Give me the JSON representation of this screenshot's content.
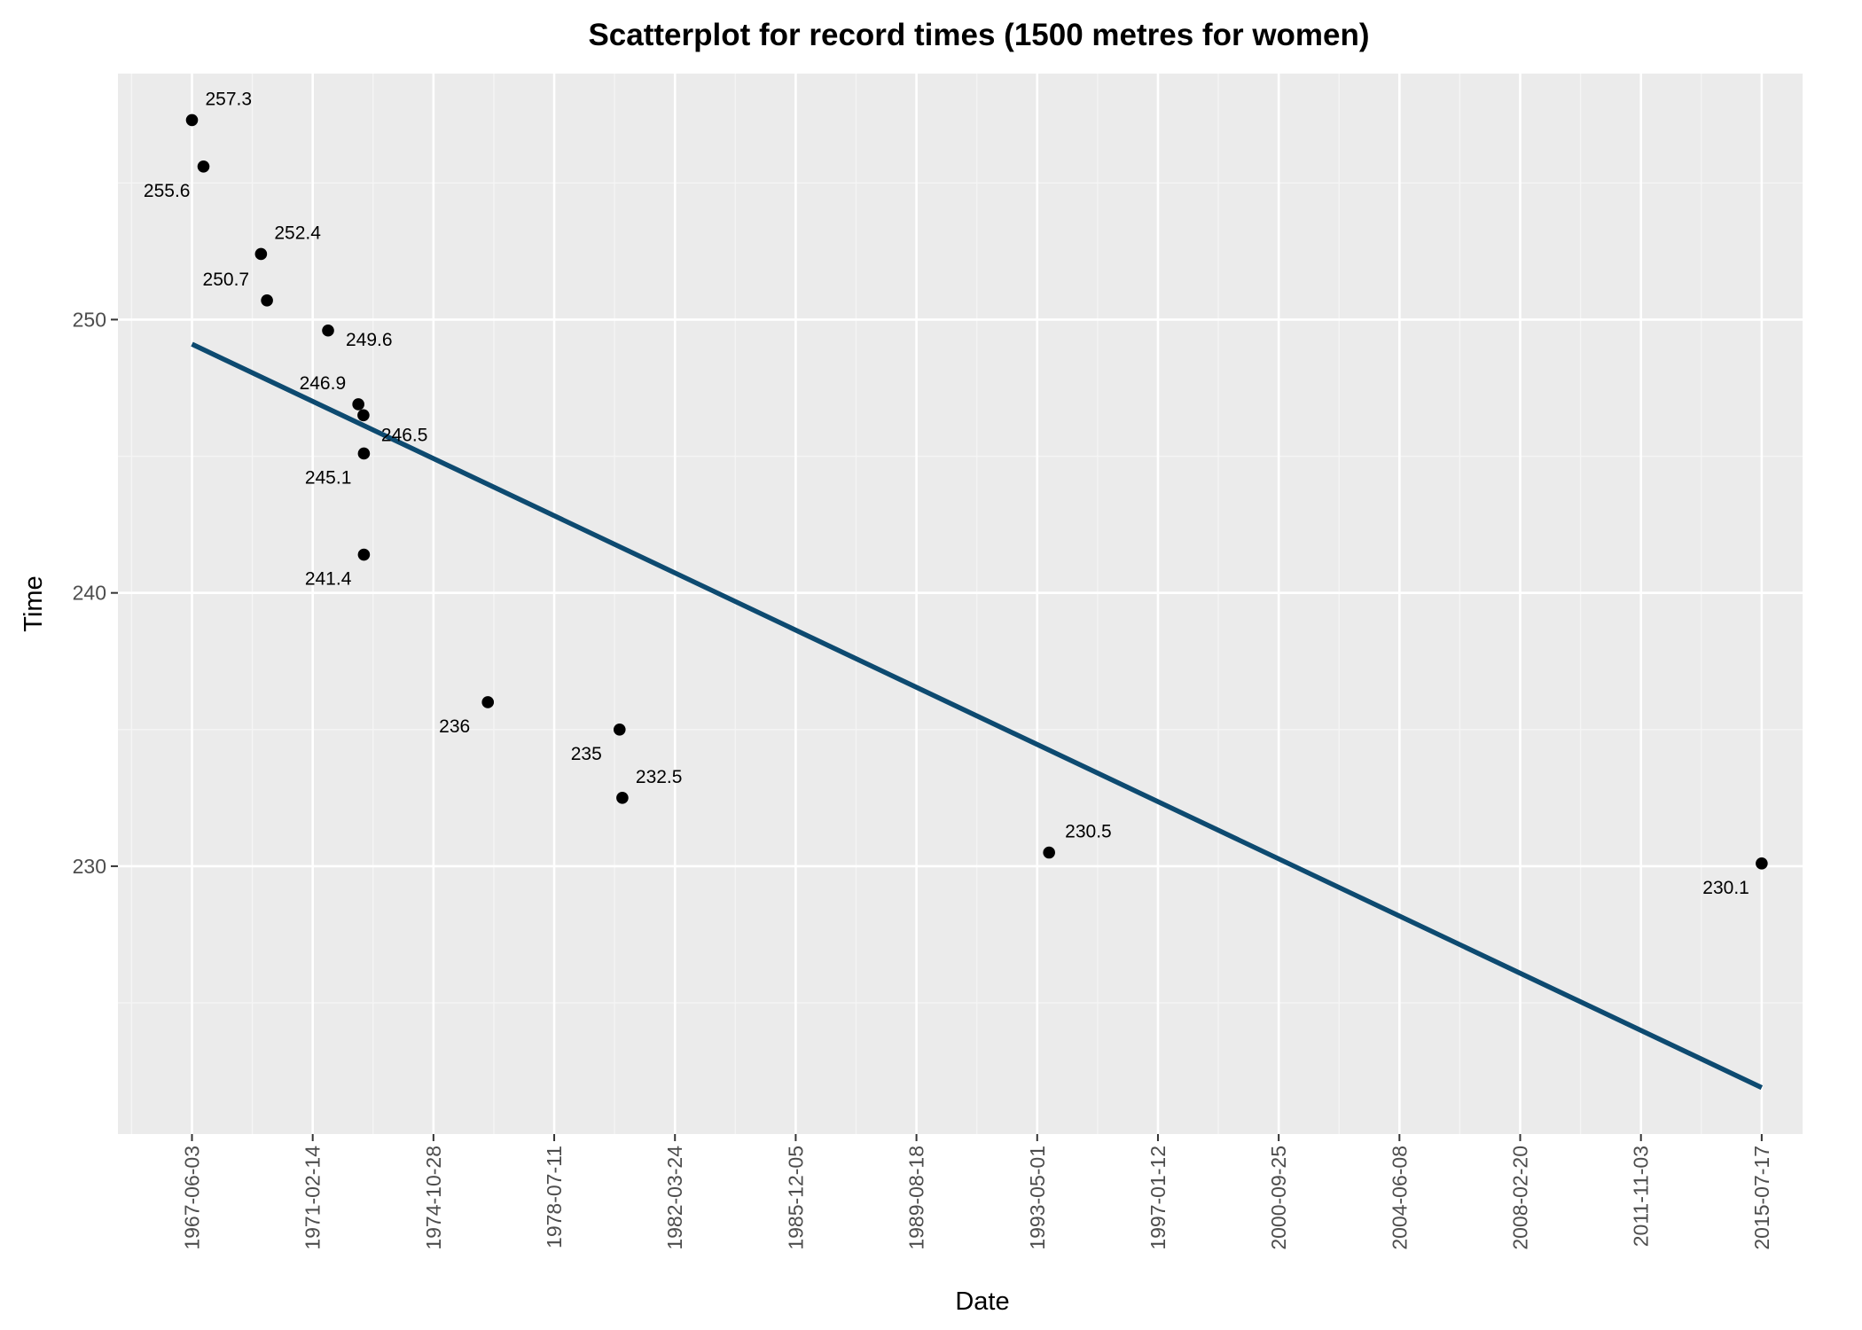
{
  "chart_data": {
    "type": "scatter",
    "title": "Scatterplot for record times (1500 metres for women)",
    "xlabel": "Date",
    "ylabel": "Time",
    "x_axis_type": "date",
    "x_ticks": [
      "1967-06-03",
      "1971-02-14",
      "1974-10-28",
      "1978-07-11",
      "1982-03-24",
      "1985-12-05",
      "1989-08-18",
      "1993-05-01",
      "1997-01-12",
      "2000-09-25",
      "2004-06-08",
      "2008-02-20",
      "2011-11-03",
      "2015-07-17"
    ],
    "y_ticks": [
      230,
      240,
      250
    ],
    "xlim": [
      "1965-02-24",
      "2016-10-17"
    ],
    "ylim": [
      220.2,
      259.0
    ],
    "grid": true,
    "background_color": "#ebebeb",
    "point_color": "#000000",
    "trend_line_color": "#0d4a70",
    "points": [
      {
        "x": "1967-06-03",
        "y": 257.3,
        "label": "257.3"
      },
      {
        "x": "1967-10-10",
        "y": 255.6,
        "label": "255.6"
      },
      {
        "x": "1969-07-15",
        "y": 252.4,
        "label": "252.4"
      },
      {
        "x": "1969-09-20",
        "y": 250.7,
        "label": "250.7"
      },
      {
        "x": "1971-08-05",
        "y": 249.6,
        "label": "249.6"
      },
      {
        "x": "1972-07-09",
        "y": 246.9,
        "label": "246.9"
      },
      {
        "x": "1972-09-04",
        "y": 246.5,
        "label": "246.5"
      },
      {
        "x": "1972-09-09",
        "y": 245.1,
        "label": "245.1"
      },
      {
        "x": "1972-09-09",
        "y": 241.4,
        "label": "241.4"
      },
      {
        "x": "1976-06-28",
        "y": 236.0,
        "label": "236"
      },
      {
        "x": "1980-07-12",
        "y": 235.0,
        "label": "235"
      },
      {
        "x": "1980-08-12",
        "y": 232.5,
        "label": "232.5"
      },
      {
        "x": "1993-09-11",
        "y": 230.5,
        "label": "230.5"
      },
      {
        "x": "2015-07-17",
        "y": 230.1,
        "label": "230.1"
      }
    ],
    "trend_line": {
      "x": [
        "1967-06-03",
        "2015-07-17"
      ],
      "y": [
        249.1,
        221.9
      ]
    }
  }
}
